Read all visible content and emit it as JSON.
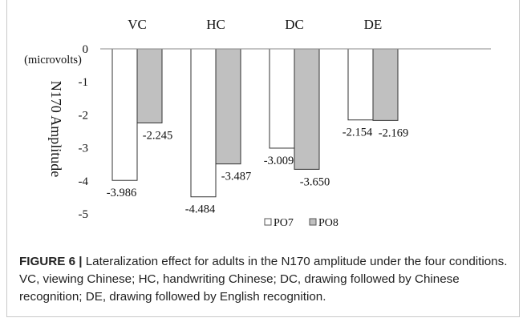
{
  "chart_data": {
    "type": "bar",
    "categories": [
      "VC",
      "HC",
      "DC",
      "DE"
    ],
    "series": [
      {
        "name": "PO7",
        "values": [
          -3.986,
          -4.484,
          -3.009,
          -2.154
        ],
        "color": "#ffffff"
      },
      {
        "name": "PO8",
        "values": [
          -2.245,
          -3.487,
          -3.65,
          -2.169
        ],
        "color": "#c0c0c0"
      }
    ],
    "value_labels": [
      [
        "-3.986",
        "-4.484",
        "-3.009",
        "-2.154"
      ],
      [
        "-2.245",
        "-3.487",
        "-3.650",
        "-2.169"
      ]
    ],
    "ylabel": "N170 Amplitude",
    "yunit": "(microvolts)",
    "ylim": [
      -5,
      0
    ],
    "yticks": [
      "0",
      "-1",
      "-2",
      "-3",
      "-4",
      "-5"
    ],
    "grid": false,
    "legend_position": "bottom"
  },
  "caption": {
    "label": "FIGURE 6 |",
    "text": " Lateralization effect for adults in the N170 amplitude under the four conditions. VC, viewing Chinese; HC, handwriting Chinese; DC, drawing followed by Chinese recognition; DE, drawing followed by English recognition."
  }
}
